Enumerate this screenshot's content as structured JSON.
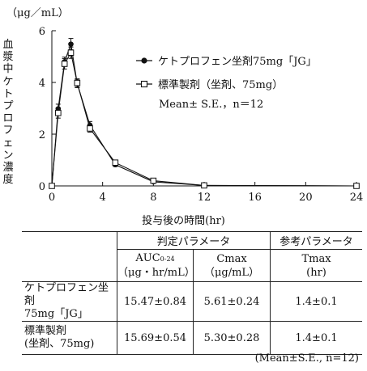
{
  "chart_data": {
    "type": "line",
    "ylabel": "血漿中ケトプロフェン濃度",
    "yunit": "（μg／mL）",
    "xlabel": "投与後の時間(hr)",
    "xlim": [
      0,
      24
    ],
    "ylim": [
      0,
      6
    ],
    "xticks": [
      "0",
      "4",
      "8",
      "12",
      "16",
      "20",
      "24"
    ],
    "yticks": [
      "0",
      "2",
      "4",
      "6"
    ],
    "legend_position": "top-right",
    "series": [
      {
        "name": "ケトプロフェン坐剤75mg「JG」",
        "marker": "filled-circle",
        "x": [
          0,
          0.5,
          1,
          1.5,
          2,
          3,
          5,
          8,
          12,
          24
        ],
        "y": [
          0,
          2.98,
          4.8,
          5.48,
          3.96,
          2.35,
          0.82,
          0.16,
          0.02,
          0
        ],
        "err": [
          0,
          0.18,
          0.18,
          0.22,
          0.16,
          0.14,
          0.07,
          0.03,
          0,
          0
        ]
      },
      {
        "name": "標準製剤（坐剤、75mg）",
        "marker": "open-square",
        "x": [
          0,
          0.5,
          1,
          1.5,
          2,
          3,
          5,
          8,
          12,
          24
        ],
        "y": [
          0,
          2.82,
          4.72,
          5.15,
          3.98,
          2.22,
          0.9,
          0.2,
          0.02,
          0
        ],
        "err": [
          0,
          0.2,
          0.2,
          0.22,
          0.16,
          0.14,
          0.07,
          0.03,
          0,
          0
        ]
      }
    ],
    "annotation": "Mean± S.E.，n＝12"
  },
  "table": {
    "group_headers": [
      "判定パラメータ",
      "参考パラメータ"
    ],
    "column_headers": [
      {
        "main": "AUC",
        "sub": "0-24",
        "unit": "（μg・hr/mL）"
      },
      {
        "main": "Cmax",
        "unit": "（μg/mL）"
      },
      {
        "main": "Tmax",
        "unit": "(hr)"
      }
    ],
    "rows": [
      {
        "label_line1": "ケトプロフェン坐剤",
        "label_line2": "75mg「JG」",
        "auc": "15.47±0.84",
        "cmax": "5.61±0.24",
        "tmax": "1.4±0.1"
      },
      {
        "label_line1": "標準製剤",
        "label_line2": "(坐剤、75mg)",
        "auc": "15.69±0.54",
        "cmax": "5.30±0.28",
        "tmax": "1.4±0.1"
      }
    ],
    "footnote": "(Mean±S.E., n=12)"
  },
  "colors": {
    "line": "#111111",
    "background": "#ffffff"
  }
}
